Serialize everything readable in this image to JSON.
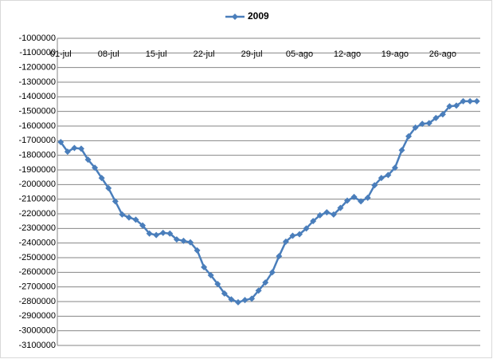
{
  "chart_data": {
    "type": "line",
    "categories": [
      "01-jul",
      null,
      null,
      null,
      null,
      null,
      null,
      "08-jul",
      null,
      null,
      null,
      null,
      null,
      null,
      "15-jul",
      null,
      null,
      null,
      null,
      null,
      null,
      "22-jul",
      null,
      null,
      null,
      null,
      null,
      null,
      "29-jul",
      null,
      null,
      null,
      null,
      null,
      null,
      "05-ago",
      null,
      null,
      null,
      null,
      null,
      null,
      "12-ago",
      null,
      null,
      null,
      null,
      null,
      null,
      "19-ago",
      null,
      null,
      null,
      null,
      null,
      null,
      "26-ago",
      null,
      null,
      null,
      null,
      null
    ],
    "series": [
      {
        "name": "2009",
        "color": "#4a7ebb",
        "values": [
          -1710000,
          -1775000,
          -1750000,
          -1755000,
          -1830000,
          -1885000,
          -1955000,
          -2025000,
          -2115000,
          -2205000,
          -2225000,
          -2240000,
          -2280000,
          -2335000,
          -2345000,
          -2330000,
          -2335000,
          -2375000,
          -2385000,
          -2395000,
          -2450000,
          -2565000,
          -2620000,
          -2680000,
          -2745000,
          -2785000,
          -2805000,
          -2790000,
          -2780000,
          -2725000,
          -2670000,
          -2600000,
          -2490000,
          -2390000,
          -2350000,
          -2340000,
          -2300000,
          -2250000,
          -2210000,
          -2190000,
          -2205000,
          -2160000,
          -2110000,
          -2085000,
          -2115000,
          -2090000,
          -2005000,
          -1955000,
          -1935000,
          -1885000,
          -1765000,
          -1670000,
          -1610000,
          -1585000,
          -1580000,
          -1545000,
          -1520000,
          -1465000,
          -1460000,
          -1430000,
          -1430000,
          -1430000
        ]
      }
    ],
    "ylim": [
      -3100000,
      -1000000
    ],
    "yticks": [
      -1000000,
      -1100000,
      -1200000,
      -1300000,
      -1400000,
      -1500000,
      -1600000,
      -1700000,
      -1800000,
      -1900000,
      -2000000,
      -2100000,
      -2200000,
      -2300000,
      -2400000,
      -2500000,
      -2600000,
      -2700000,
      -2800000,
      -2900000,
      -3000000,
      -3100000
    ],
    "grid": true,
    "legend": "top"
  }
}
